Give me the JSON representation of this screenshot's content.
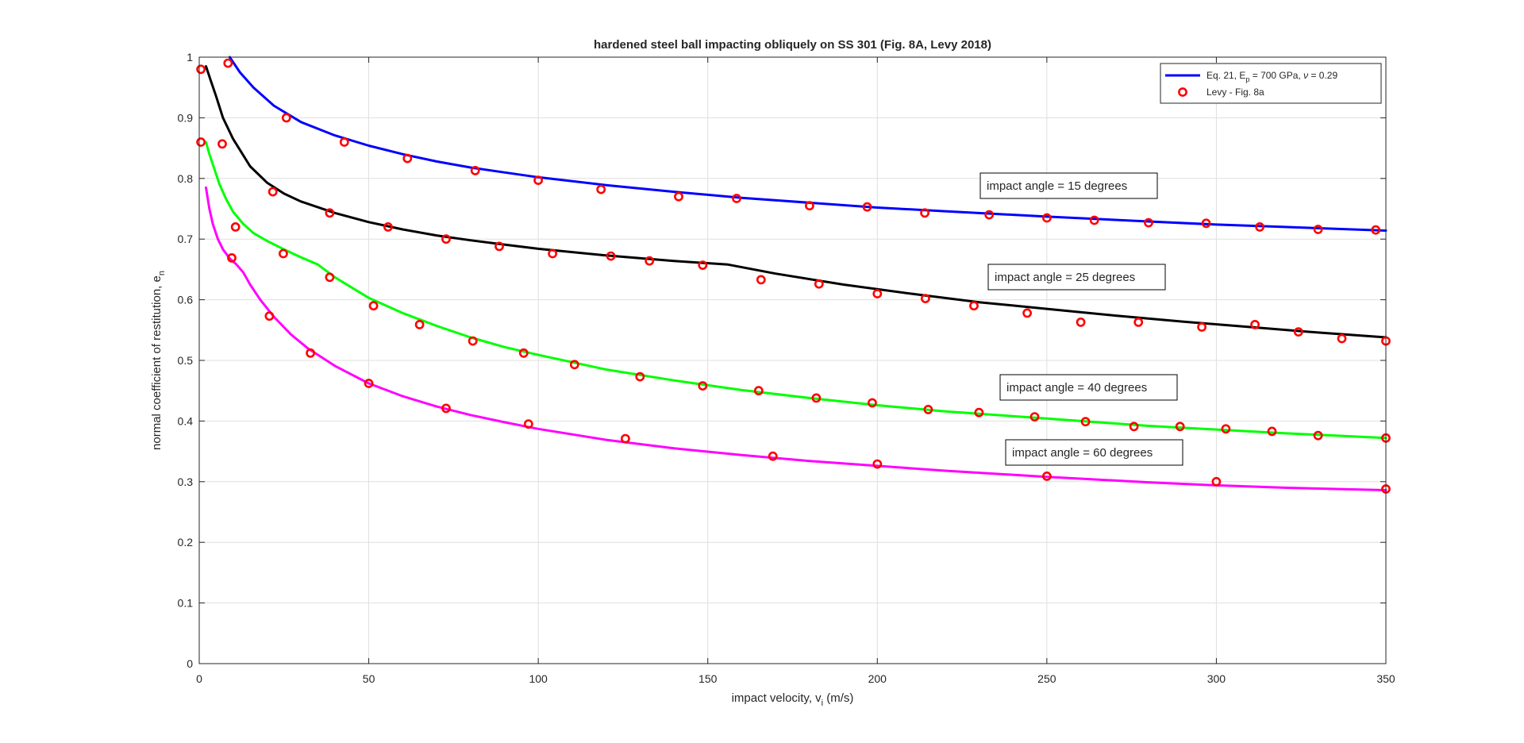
{
  "chart_data": {
    "type": "line",
    "title": "hardened steel ball impacting obliquely on SS 301 (Fig. 8A, Levy 2018)",
    "xlabel_main": "impact velocity, v",
    "xlabel_sub": "i",
    "xlabel_tail": " (m/s)",
    "ylabel_main": "normal coefficient of restitution, e",
    "ylabel_sub": "n",
    "xlim": [
      0,
      350
    ],
    "ylim": [
      0,
      1
    ],
    "xticks": [
      0,
      50,
      100,
      150,
      200,
      250,
      300,
      350
    ],
    "yticks": [
      0,
      0.1,
      0.2,
      0.3,
      0.4,
      0.5,
      0.6,
      0.7,
      0.8,
      0.9,
      1
    ],
    "grid": true,
    "legend_position": "top-right",
    "legend": [
      {
        "type": "line",
        "color": "#0000ff",
        "parts": [
          {
            "t": "Eq. 21, E"
          },
          {
            "t": "p",
            "sub": true
          },
          {
            "t": " = 700 GPa, "
          },
          {
            "t": "ν",
            "italic": true
          },
          {
            "t": " = 0.29"
          }
        ]
      },
      {
        "type": "marker",
        "color": "#ff0000",
        "parts": [
          {
            "t": "Levy - Fig. 8a"
          }
        ]
      }
    ],
    "marker_color": "#ff0000",
    "series": [
      {
        "angle_label": "impact angle = 15 degrees",
        "color": "#0000ff",
        "curve": [
          [
            9,
            1.0
          ],
          [
            12,
            0.975
          ],
          [
            16,
            0.95
          ],
          [
            22,
            0.92
          ],
          [
            30,
            0.893
          ],
          [
            40,
            0.871
          ],
          [
            50,
            0.854
          ],
          [
            60,
            0.84
          ],
          [
            70,
            0.828
          ],
          [
            80,
            0.818
          ],
          [
            90,
            0.81
          ],
          [
            100,
            0.802
          ],
          [
            120,
            0.789
          ],
          [
            140,
            0.778
          ],
          [
            160,
            0.768
          ],
          [
            180,
            0.76
          ],
          [
            200,
            0.752
          ],
          [
            220,
            0.746
          ],
          [
            250,
            0.737
          ],
          [
            280,
            0.729
          ],
          [
            300,
            0.724
          ],
          [
            320,
            0.72
          ],
          [
            350,
            0.714
          ]
        ],
        "points": [
          [
            8.5,
            0.99
          ],
          [
            25.7,
            0.9
          ],
          [
            42.8,
            0.86
          ],
          [
            61.4,
            0.833
          ],
          [
            81.4,
            0.813
          ],
          [
            100,
            0.797
          ],
          [
            118.5,
            0.782
          ],
          [
            141.4,
            0.77
          ],
          [
            158.5,
            0.767
          ],
          [
            180,
            0.755
          ],
          [
            197,
            0.753
          ],
          [
            214,
            0.743
          ],
          [
            233,
            0.74
          ],
          [
            250,
            0.735
          ],
          [
            264,
            0.731
          ],
          [
            280,
            0.727
          ],
          [
            297,
            0.726
          ],
          [
            312.8,
            0.72
          ],
          [
            330,
            0.716
          ],
          [
            347,
            0.715
          ]
        ]
      },
      {
        "angle_label": "impact angle = 25 degrees",
        "color": "#000000",
        "curve": [
          [
            2,
            0.985
          ],
          [
            3.5,
            0.96
          ],
          [
            5,
            0.935
          ],
          [
            7,
            0.9
          ],
          [
            10,
            0.865
          ],
          [
            15,
            0.82
          ],
          [
            20,
            0.793
          ],
          [
            25,
            0.775
          ],
          [
            30,
            0.762
          ],
          [
            40,
            0.743
          ],
          [
            50,
            0.728
          ],
          [
            60,
            0.716
          ],
          [
            70,
            0.706
          ],
          [
            80,
            0.698
          ],
          [
            90,
            0.691
          ],
          [
            100,
            0.684
          ],
          [
            120,
            0.673
          ],
          [
            140,
            0.664
          ],
          [
            156,
            0.658
          ],
          [
            170,
            0.643
          ],
          [
            190,
            0.625
          ],
          [
            210,
            0.61
          ],
          [
            230,
            0.596
          ],
          [
            250,
            0.585
          ],
          [
            270,
            0.574
          ],
          [
            290,
            0.564
          ],
          [
            310,
            0.555
          ],
          [
            330,
            0.546
          ],
          [
            350,
            0.538
          ]
        ],
        "points": [
          [
            0.5,
            0.98
          ],
          [
            6.8,
            0.857
          ],
          [
            21.7,
            0.778
          ],
          [
            38.5,
            0.743
          ],
          [
            55.7,
            0.72
          ],
          [
            72.8,
            0.7
          ],
          [
            88.5,
            0.688
          ],
          [
            104.2,
            0.676
          ],
          [
            121.4,
            0.672
          ],
          [
            132.8,
            0.664
          ],
          [
            148.5,
            0.657
          ],
          [
            165.7,
            0.633
          ],
          [
            182.8,
            0.626
          ],
          [
            200,
            0.61
          ],
          [
            214.2,
            0.602
          ],
          [
            228.5,
            0.59
          ],
          [
            244.2,
            0.578
          ],
          [
            260,
            0.563
          ],
          [
            277,
            0.563
          ],
          [
            295.7,
            0.555
          ],
          [
            311.4,
            0.559
          ],
          [
            324.2,
            0.547
          ],
          [
            337,
            0.536
          ],
          [
            350,
            0.532
          ]
        ]
      },
      {
        "angle_label": "impact angle = 40 degrees",
        "color": "#00ff00",
        "curve": [
          [
            2,
            0.86
          ],
          [
            3,
            0.84
          ],
          [
            4.5,
            0.815
          ],
          [
            6,
            0.79
          ],
          [
            8,
            0.765
          ],
          [
            10,
            0.745
          ],
          [
            13,
            0.725
          ],
          [
            16,
            0.71
          ],
          [
            20,
            0.697
          ],
          [
            25,
            0.683
          ],
          [
            30,
            0.67
          ],
          [
            35,
            0.658
          ],
          [
            40,
            0.637
          ],
          [
            50,
            0.603
          ],
          [
            60,
            0.578
          ],
          [
            70,
            0.557
          ],
          [
            80,
            0.538
          ],
          [
            90,
            0.522
          ],
          [
            100,
            0.509
          ],
          [
            120,
            0.485
          ],
          [
            140,
            0.467
          ],
          [
            160,
            0.451
          ],
          [
            180,
            0.438
          ],
          [
            200,
            0.426
          ],
          [
            220,
            0.416
          ],
          [
            250,
            0.404
          ],
          [
            280,
            0.392
          ],
          [
            300,
            0.386
          ],
          [
            320,
            0.38
          ],
          [
            350,
            0.372
          ]
        ],
        "points": [
          [
            0.5,
            0.86
          ],
          [
            10.7,
            0.72
          ],
          [
            24.8,
            0.676
          ],
          [
            38.5,
            0.637
          ],
          [
            51.4,
            0.59
          ],
          [
            65,
            0.559
          ],
          [
            80.7,
            0.532
          ],
          [
            95.7,
            0.512
          ],
          [
            110.7,
            0.493
          ],
          [
            130,
            0.473
          ],
          [
            148.5,
            0.458
          ],
          [
            165,
            0.45
          ],
          [
            182,
            0.438
          ],
          [
            198.5,
            0.43
          ],
          [
            215,
            0.419
          ],
          [
            230,
            0.414
          ],
          [
            246.4,
            0.407
          ],
          [
            261.4,
            0.399
          ],
          [
            275.7,
            0.391
          ],
          [
            289.3,
            0.391
          ],
          [
            302.8,
            0.387
          ],
          [
            316.4,
            0.383
          ],
          [
            330,
            0.376
          ],
          [
            350,
            0.372
          ]
        ]
      },
      {
        "angle_label": "impact angle = 60 degrees",
        "color": "#ff00ff",
        "curve": [
          [
            2,
            0.785
          ],
          [
            3,
            0.75
          ],
          [
            4,
            0.725
          ],
          [
            5.5,
            0.7
          ],
          [
            7,
            0.683
          ],
          [
            9,
            0.668
          ],
          [
            11,
            0.658
          ],
          [
            13,
            0.645
          ],
          [
            15,
            0.625
          ],
          [
            18,
            0.6
          ],
          [
            22,
            0.572
          ],
          [
            27,
            0.543
          ],
          [
            32,
            0.52
          ],
          [
            40,
            0.491
          ],
          [
            50,
            0.462
          ],
          [
            60,
            0.441
          ],
          [
            70,
            0.424
          ],
          [
            80,
            0.41
          ],
          [
            90,
            0.398
          ],
          [
            100,
            0.387
          ],
          [
            120,
            0.369
          ],
          [
            140,
            0.355
          ],
          [
            160,
            0.344
          ],
          [
            180,
            0.334
          ],
          [
            200,
            0.326
          ],
          [
            220,
            0.318
          ],
          [
            250,
            0.308
          ],
          [
            280,
            0.299
          ],
          [
            300,
            0.294
          ],
          [
            320,
            0.29
          ],
          [
            350,
            0.286
          ]
        ],
        "points": [
          [
            9.6,
            0.669
          ],
          [
            20.7,
            0.573
          ],
          [
            32.8,
            0.512
          ],
          [
            50,
            0.462
          ],
          [
            72.8,
            0.421
          ],
          [
            97.1,
            0.395
          ],
          [
            125.7,
            0.371
          ],
          [
            169.2,
            0.342
          ],
          [
            200,
            0.329
          ],
          [
            250,
            0.309
          ],
          [
            300,
            0.3
          ],
          [
            350,
            0.288
          ]
        ]
      }
    ]
  }
}
